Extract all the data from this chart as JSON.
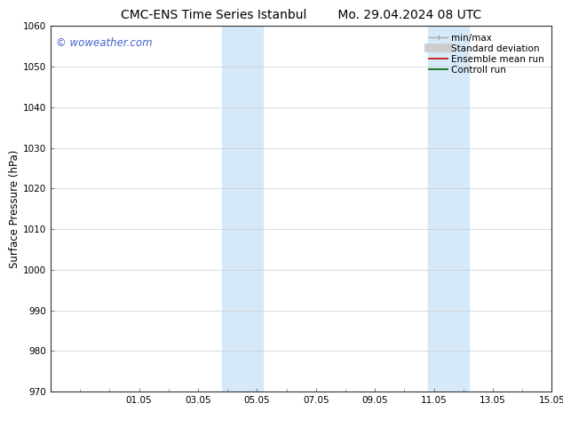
{
  "title_left": "CMC-ENS Time Series Istanbul",
  "title_right": "Mo. 29.04.2024 08 UTC",
  "ylabel": "Surface Pressure (hPa)",
  "ylim": [
    970,
    1060
  ],
  "yticks": [
    970,
    980,
    990,
    1000,
    1010,
    1020,
    1030,
    1040,
    1050,
    1060
  ],
  "xlim_start": 29.0,
  "xlim_end": 45.0,
  "xtick_labels": [
    "01.05",
    "03.05",
    "05.05",
    "07.05",
    "09.05",
    "11.05",
    "13.05",
    "15.05"
  ],
  "xtick_positions": [
    32,
    34,
    36,
    38,
    40,
    42,
    44,
    46
  ],
  "shaded_bands": [
    {
      "x_start": 34.8,
      "x_end": 36.2
    },
    {
      "x_start": 41.8,
      "x_end": 43.2
    }
  ],
  "shaded_color": "#d6e9f8",
  "background_color": "#ffffff",
  "watermark_text": "© woweather.com",
  "watermark_color": "#4466cc",
  "title_fontsize": 10,
  "tick_fontsize": 7.5,
  "ylabel_fontsize": 8.5,
  "legend_fontsize": 7.5,
  "grid_color": "#cccccc",
  "grid_linewidth": 0.5,
  "spine_color": "#888888",
  "tick_color": "#333333"
}
